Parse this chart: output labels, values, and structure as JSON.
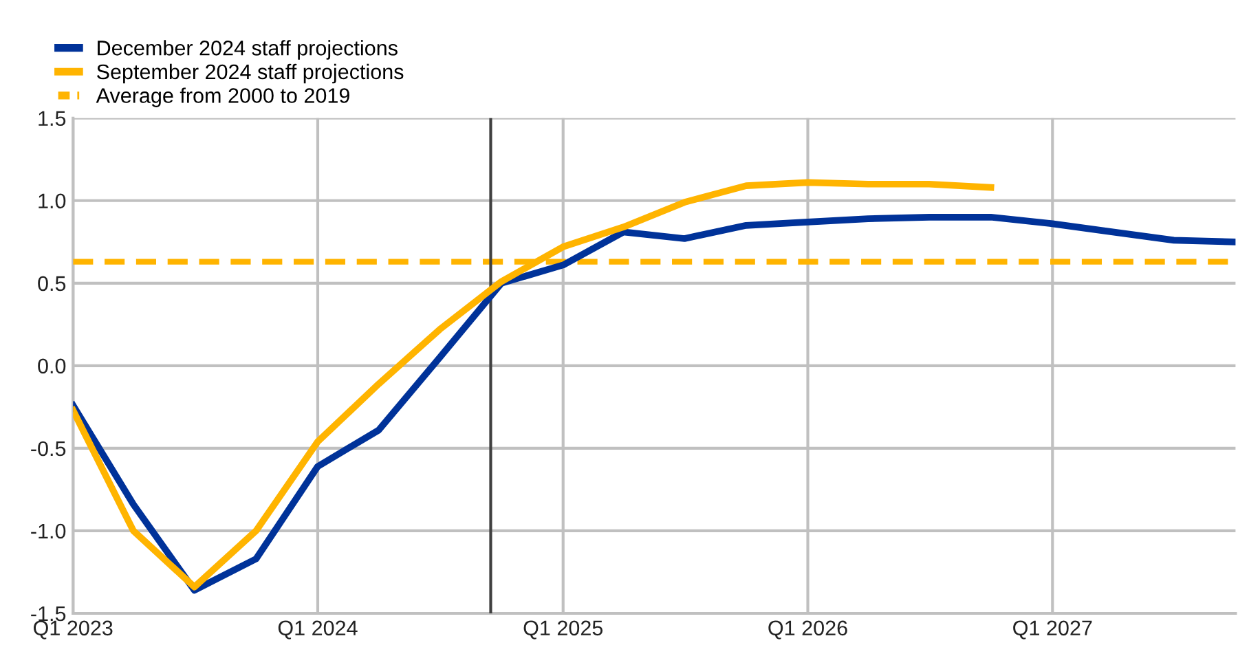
{
  "chart_data": {
    "type": "line",
    "x": [
      "2023-01",
      "2023-04",
      "2023-07",
      "2023-10",
      "2024-01",
      "2024-04",
      "2024-07",
      "2024-10",
      "2025-01",
      "2025-04",
      "2025-07",
      "2025-10",
      "2026-01",
      "2026-04",
      "2026-07",
      "2026-10",
      "2027-01",
      "2027-04",
      "2027-07",
      "2027-10"
    ],
    "series": [
      {
        "name": "December 2024 staff projections",
        "color": "#003299",
        "values": [
          -0.24,
          -0.84,
          -1.36,
          -1.17,
          -0.61,
          -0.39,
          0.05,
          0.5,
          0.61,
          0.81,
          0.77,
          0.85,
          0.87,
          0.89,
          0.9,
          0.9,
          0.86,
          0.81,
          0.76,
          0.75
        ]
      },
      {
        "name": "September 2024 staff projections",
        "color": "#ffb400",
        "values": [
          -0.27,
          -1.0,
          -1.34,
          -1.0,
          -0.46,
          -0.11,
          0.22,
          0.51,
          0.72,
          0.84,
          0.99,
          1.09,
          1.11,
          1.1,
          1.1,
          1.08,
          null,
          null,
          null,
          null
        ]
      }
    ],
    "ref_lines": [
      {
        "axis": "y",
        "value": 0.63,
        "label": "Average from 2000 to 2019",
        "color": "#ffb400",
        "line_style": "dashed"
      },
      {
        "axis": "x",
        "value": "2024-09-15",
        "color": "#404040",
        "line_style": "solid"
      }
    ],
    "xlim": [
      "2023-01",
      "2027-10"
    ],
    "xticks": [
      {
        "value": "2023-01",
        "label": "Q1 2023"
      },
      {
        "value": "2024-01",
        "label": "Q1 2024"
      },
      {
        "value": "2025-01",
        "label": "Q1 2025"
      },
      {
        "value": "2026-01",
        "label": "Q1 2026"
      },
      {
        "value": "2027-01",
        "label": "Q1 2027"
      }
    ],
    "ylim": [
      -1.5,
      1.5
    ],
    "yticks": [
      {
        "value": -1.5,
        "label": "-1.5"
      },
      {
        "value": -1.0,
        "label": "-1.0"
      },
      {
        "value": -0.5,
        "label": "-0.5"
      },
      {
        "value": 0.0,
        "label": "0.0"
      },
      {
        "value": 0.5,
        "label": "0.5"
      },
      {
        "value": 1.0,
        "label": "1.0"
      },
      {
        "value": 1.5,
        "label": "1.5"
      }
    ],
    "grid": true,
    "legend": "top left",
    "marker": "none",
    "line_style": "solid"
  }
}
